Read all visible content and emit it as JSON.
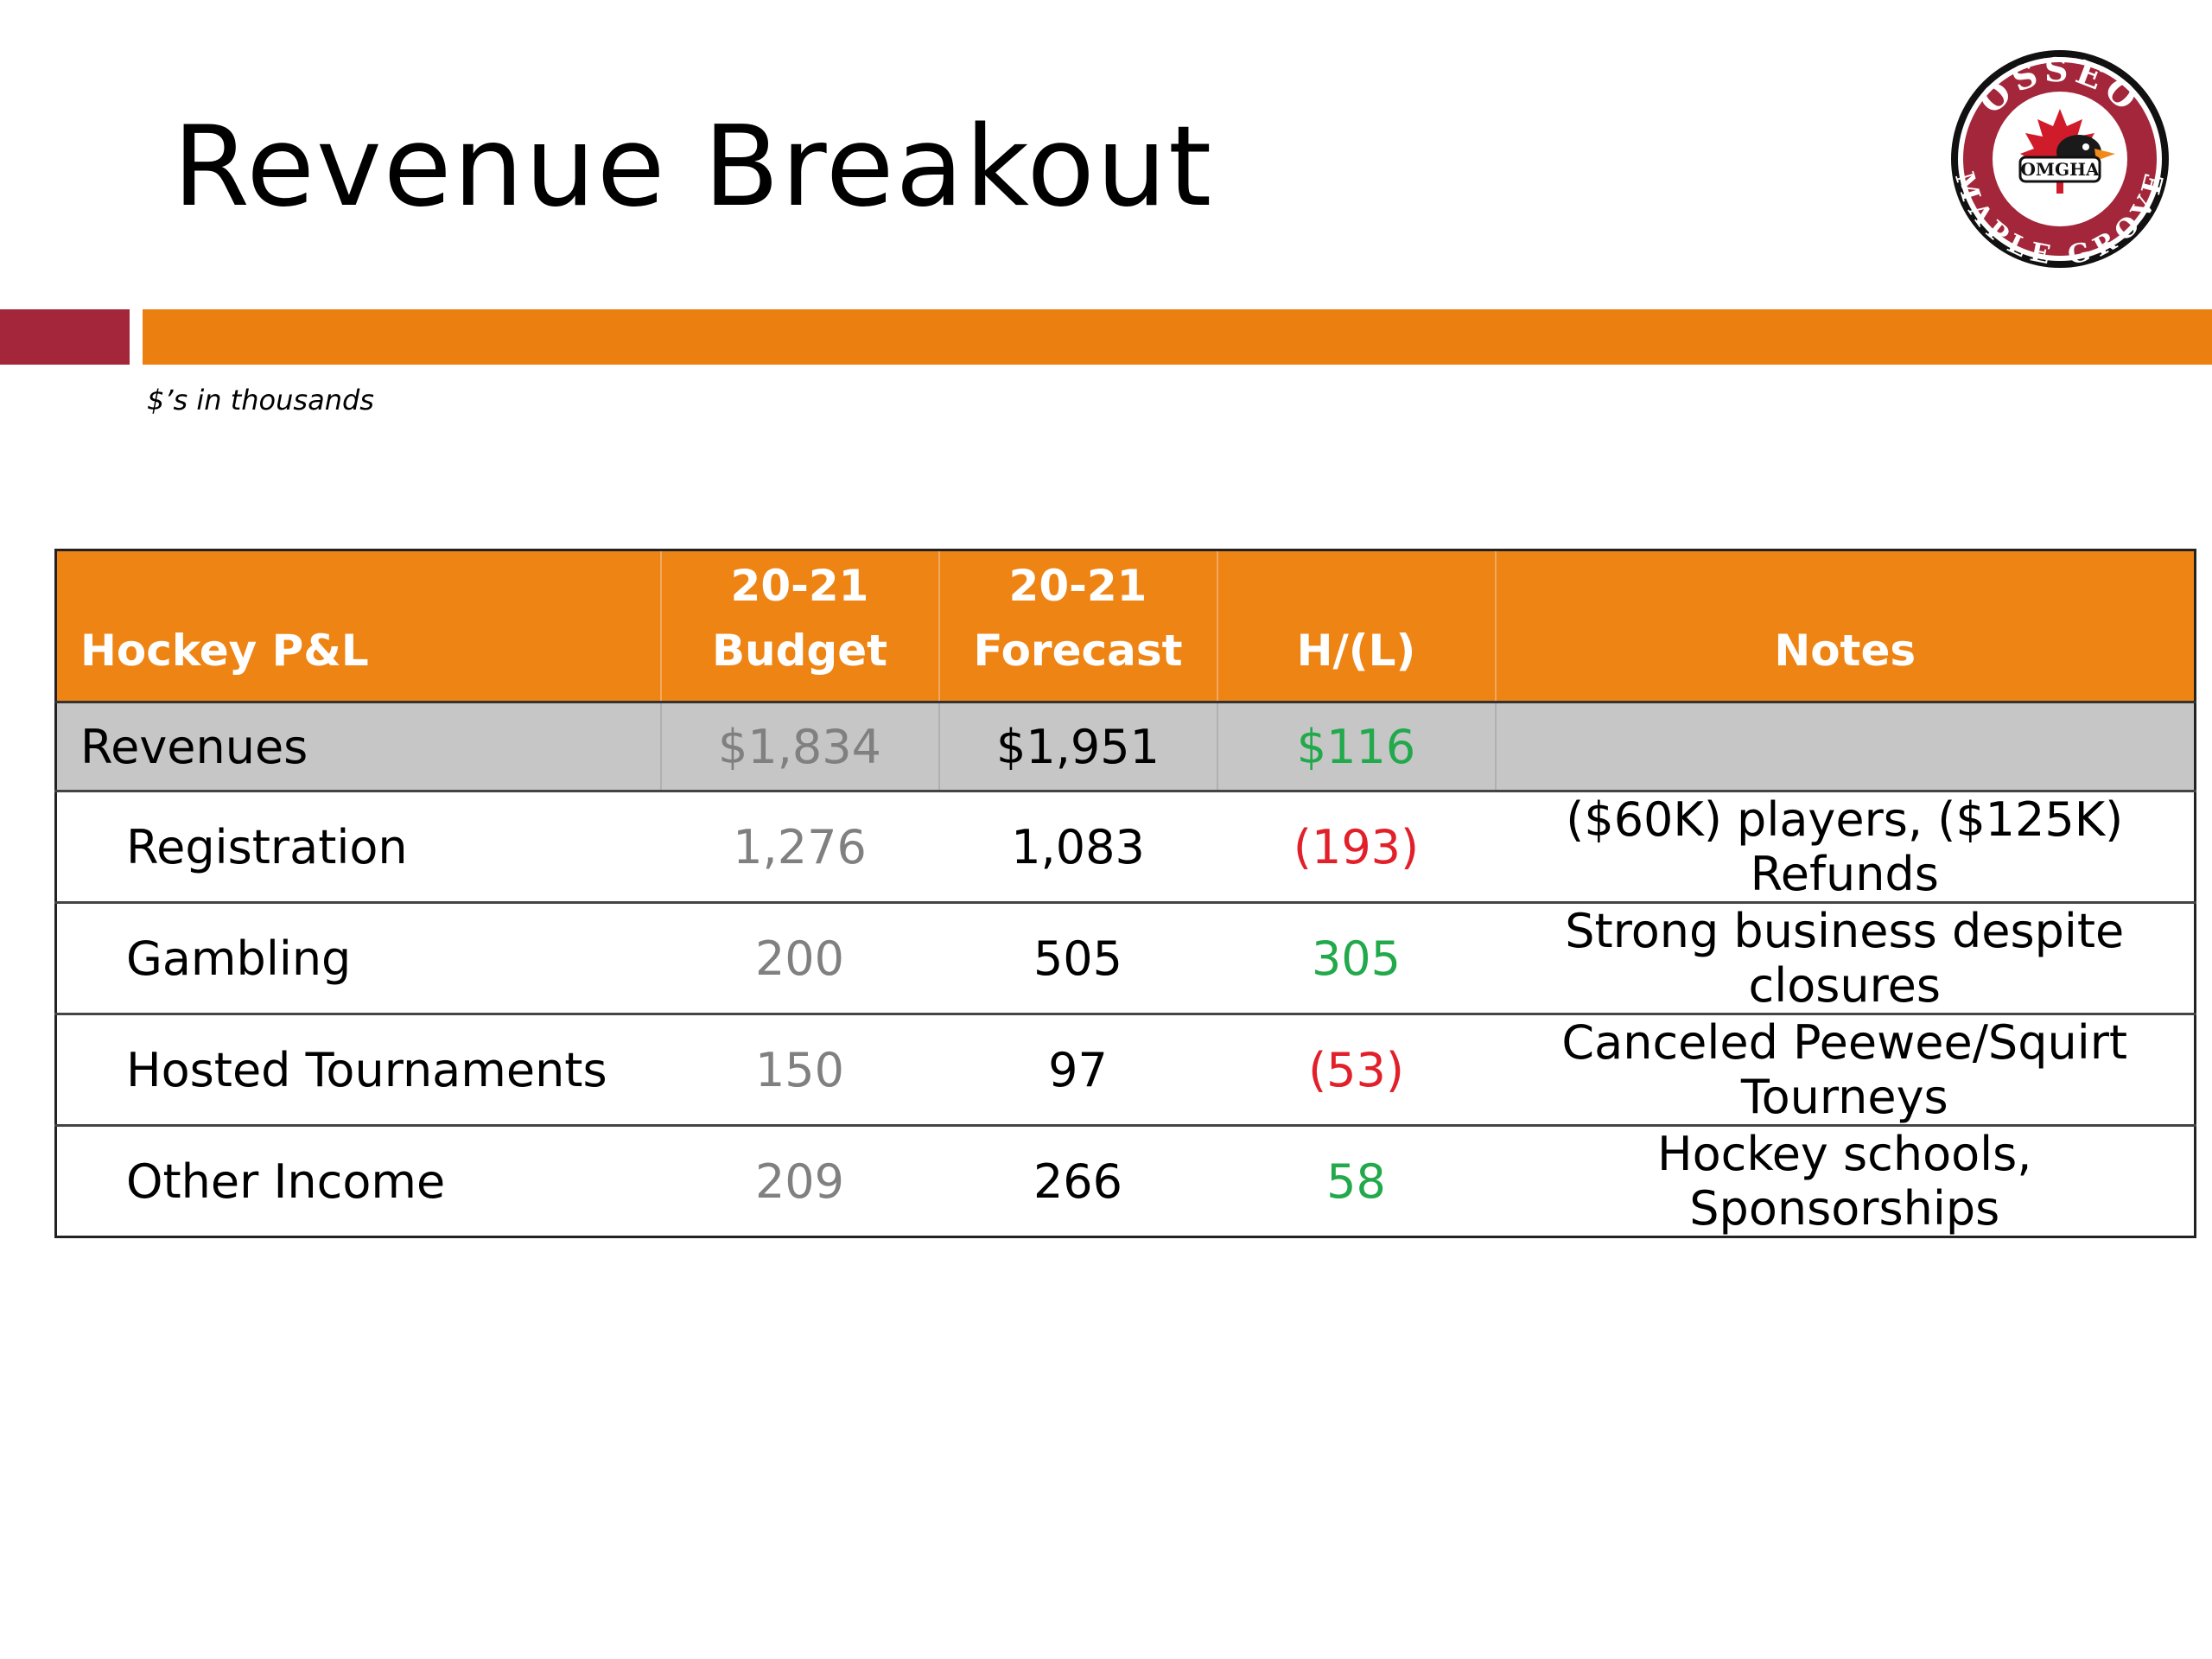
{
  "slide": {
    "title": "Revenue Breakout",
    "subtitle": "$’s in thousands",
    "accent_colors": {
      "bar_left": "#A3263A",
      "bar_right": "#EB7F10"
    }
  },
  "logo": {
    "icon": "osseo-maple-grove-logo",
    "top_text": "OSSEO",
    "bottom_text": "MAPLE GROVE",
    "badge_text": "OMGHA"
  },
  "table": {
    "header_color": "#EE8414",
    "headers": [
      {
        "line1": "",
        "line2": "Hockey P&L"
      },
      {
        "line1": "20-21",
        "line2": "Budget"
      },
      {
        "line1": "20-21",
        "line2": "Forecast"
      },
      {
        "line1": "",
        "line2": "H/(L)"
      },
      {
        "line1": "",
        "line2": "Notes"
      }
    ],
    "subtotal": {
      "label": "Revenues",
      "budget": "$1,834",
      "forecast": "$1,951",
      "variance": "$116",
      "notes": ""
    },
    "rows": [
      {
        "label": "Registration",
        "budget": "1,276",
        "forecast": "1,083",
        "variance": "(193)",
        "notes": "($60K) players, ($125K) Refunds"
      },
      {
        "label": "Gambling",
        "budget": "200",
        "forecast": "505",
        "variance": "305",
        "notes": "Strong business despite closures"
      },
      {
        "label": "Hosted Tournaments",
        "budget": "150",
        "forecast": "97",
        "variance": "(53)",
        "notes": "Canceled Peewee/Squirt Tourneys"
      },
      {
        "label": "Other Income",
        "budget": "209",
        "forecast": "266",
        "variance": "58",
        "notes": "Hockey schools, Sponsorships"
      }
    ]
  }
}
